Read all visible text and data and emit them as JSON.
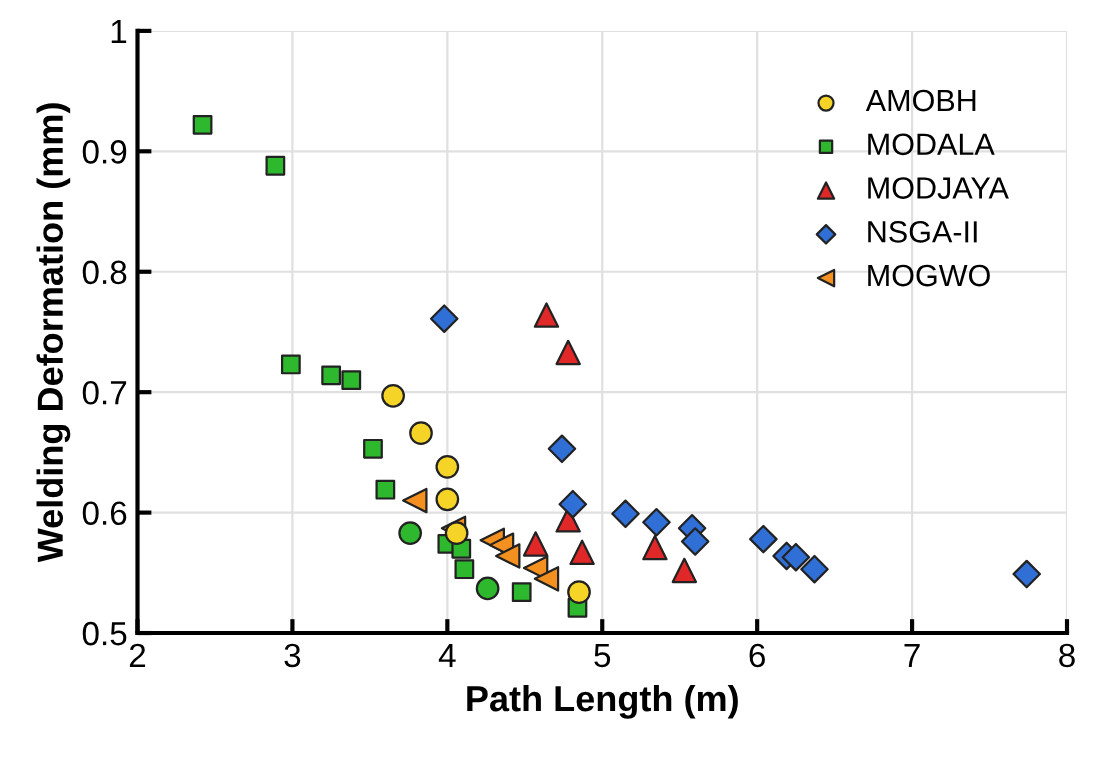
{
  "chart_data": {
    "type": "scatter",
    "xlabel": "Path Length (m)",
    "ylabel": "Welding Deformation (mm)",
    "xlim": [
      2,
      8
    ],
    "ylim": [
      0.5,
      1
    ],
    "xticks": [
      2,
      3,
      4,
      5,
      6,
      7,
      8
    ],
    "yticks": [
      0.5,
      0.6,
      0.7,
      0.8,
      0.9,
      1
    ],
    "grid": true,
    "legend": "top right",
    "series": [
      {
        "name": "AMOBH",
        "color": "#f5d327",
        "marker": "circle",
        "x": [
          3.65,
          3.83,
          4.0,
          4.0,
          4.06,
          4.85
        ],
        "values": [
          0.697,
          0.666,
          0.638,
          0.611,
          0.583,
          0.534
        ]
      },
      {
        "name": "MODALA",
        "color": "#2db82d",
        "marker": "square",
        "x": [
          2.42,
          2.89,
          2.99,
          3.25,
          3.38,
          3.52,
          3.6,
          4.0,
          4.09,
          4.11,
          4.48,
          4.84
        ],
        "values": [
          0.922,
          0.888,
          0.723,
          0.714,
          0.71,
          0.653,
          0.619,
          0.574,
          0.57,
          0.553,
          0.534,
          0.521
        ]
      },
      {
        "name": "MODJAYA",
        "color": "#e02828",
        "marker": "triangle",
        "x": [
          4.64,
          4.78,
          4.78,
          4.87,
          4.57,
          5.34,
          5.53
        ],
        "values": [
          0.764,
          0.733,
          0.594,
          0.567,
          0.574,
          0.571,
          0.552
        ]
      },
      {
        "name": "NSGA-II",
        "color": "#2f6fd6",
        "marker": "diamond",
        "x": [
          3.98,
          4.74,
          4.81,
          5.15,
          5.35,
          5.58,
          5.6,
          6.04,
          6.19,
          6.25,
          6.37,
          7.74
        ],
        "values": [
          0.761,
          0.653,
          0.607,
          0.599,
          0.592,
          0.587,
          0.576,
          0.578,
          0.564,
          0.563,
          0.553,
          0.549
        ]
      },
      {
        "name": "MOGWO",
        "color": "#f39020",
        "marker": "triangle_left",
        "x": [
          3.79,
          4.04,
          4.29,
          4.35,
          4.39,
          4.57,
          4.64
        ],
        "values": [
          0.61,
          0.587,
          0.577,
          0.573,
          0.564,
          0.554,
          0.545
        ]
      },
      {
        "color": "#2db82d",
        "marker": "circle",
        "x": [
          3.76,
          4.26
        ],
        "values": [
          0.583,
          0.537
        ]
      }
    ]
  }
}
